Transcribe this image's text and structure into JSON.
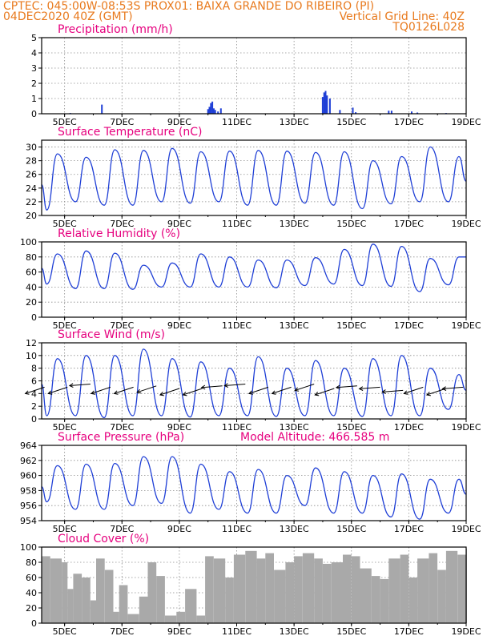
{
  "header": {
    "line1_left": "CPTEC:   045:00W-08:53S   PROX01: BAIXA GRANDE DO RIBEIRO (PI)",
    "line2_left": "04DEC2020 40Z (GMT)",
    "line2_right": "Vertical Grid Line: 40Z",
    "line3_right": "TQ0126L028"
  },
  "x_tick_labels": [
    "5DEC",
    "7DEC",
    "9DEC",
    "11DEC",
    "13DEC",
    "15DEC",
    "17DEC",
    "19DEC"
  ],
  "x_tick_days": [
    5,
    7,
    9,
    11,
    13,
    15,
    17,
    19
  ],
  "x_range_days": [
    4.2,
    19.0
  ],
  "colors": {
    "line": "#1f3fd6",
    "bar": "#1f3fd6",
    "cloud": "#a9a9a9",
    "title": "#e6007e",
    "header": "#e87a1e",
    "arrow": "#000000"
  },
  "chart_data": [
    {
      "id": "precip",
      "type": "bar",
      "title": "Precipitation (mm/h)",
      "ylim": [
        0,
        5
      ],
      "yticks": [
        0,
        1,
        2,
        3,
        4,
        5
      ],
      "x": [
        5.2,
        6.3,
        10.0,
        10.05,
        10.1,
        10.15,
        10.2,
        10.25,
        10.35,
        10.45,
        14.0,
        14.05,
        14.1,
        14.15,
        14.25,
        14.6,
        15.05,
        15.15,
        16.3,
        16.4,
        17.1,
        17.3,
        18.3
      ],
      "values": [
        0.05,
        0.6,
        0.3,
        0.45,
        0.7,
        0.8,
        0.35,
        0.25,
        0.15,
        0.35,
        1.1,
        1.4,
        1.5,
        1.2,
        1.0,
        0.25,
        0.4,
        0.1,
        0.2,
        0.2,
        0.15,
        0.08,
        0.05
      ],
      "grid": true
    },
    {
      "id": "temp",
      "type": "line",
      "title": "Surface Temperature (nC)",
      "ylim": [
        20,
        31
      ],
      "yticks": [
        20,
        22,
        24,
        26,
        28,
        30
      ],
      "daily_min": [
        20.8,
        22.0,
        21.5,
        21.5,
        22.0,
        21.8,
        22.0,
        21.5,
        21.5,
        21.8,
        21.5,
        21.0,
        21.7,
        22.0,
        22.0
      ],
      "daily_max": [
        29.0,
        28.5,
        29.6,
        29.5,
        29.8,
        29.3,
        29.4,
        29.5,
        29.4,
        29.2,
        29.3,
        28.0,
        28.6,
        30.0,
        28.6
      ],
      "series_start": [
        4.2,
        24.5
      ],
      "series_end": [
        19.0,
        25.0
      ],
      "grid": true
    },
    {
      "id": "rh",
      "type": "line",
      "title": "Relative Humidity (%)",
      "ylim": [
        0,
        100
      ],
      "yticks": [
        0,
        20,
        40,
        60,
        80,
        100
      ],
      "daily_min": [
        44,
        38,
        38,
        37,
        40,
        40,
        40,
        40,
        39,
        42,
        44,
        42,
        41,
        34,
        43
      ],
      "daily_max": [
        84,
        88,
        85,
        69,
        72,
        84,
        80,
        76,
        76,
        79,
        90,
        97,
        94,
        78,
        80
      ],
      "series_start": [
        4.2,
        65
      ],
      "series_end": [
        19.0,
        80
      ],
      "grid": true
    },
    {
      "id": "wind",
      "type": "line",
      "title": "Surface Wind (m/s)",
      "ylim": [
        0,
        12
      ],
      "yticks": [
        0,
        2,
        4,
        6,
        8,
        10,
        12
      ],
      "daily_min": [
        0.5,
        0.5,
        0.2,
        0.5,
        0.5,
        0.3,
        0.5,
        0.5,
        0.4,
        0.5,
        0.5,
        0.4,
        0.5,
        0.5,
        1.5
      ],
      "daily_max": [
        9.5,
        10.0,
        10.0,
        11.0,
        9.5,
        9.0,
        8.0,
        9.8,
        8.0,
        9.2,
        8.0,
        9.5,
        10.0,
        8.0,
        7.0
      ],
      "series_start": [
        4.2,
        5.5
      ],
      "series_end": [
        19.0,
        4.5
      ],
      "arrows": [
        {
          "x": 4.3,
          "y": 5.0,
          "dir": "sw"
        },
        {
          "x": 5.1,
          "y": 5.0,
          "dir": "sw"
        },
        {
          "x": 5.9,
          "y": 5.5,
          "dir": "w"
        },
        {
          "x": 6.6,
          "y": 5.0,
          "dir": "sw"
        },
        {
          "x": 7.4,
          "y": 5.0,
          "dir": "sw"
        },
        {
          "x": 8.2,
          "y": 5.2,
          "dir": "sw"
        },
        {
          "x": 9.0,
          "y": 4.8,
          "dir": "sw"
        },
        {
          "x": 9.8,
          "y": 4.8,
          "dir": "sw"
        },
        {
          "x": 10.5,
          "y": 5.2,
          "dir": "w"
        },
        {
          "x": 11.3,
          "y": 5.5,
          "dir": "w"
        },
        {
          "x": 12.1,
          "y": 5.0,
          "dir": "sw"
        },
        {
          "x": 12.9,
          "y": 5.0,
          "dir": "sw"
        },
        {
          "x": 13.7,
          "y": 5.5,
          "dir": "sw"
        },
        {
          "x": 14.4,
          "y": 4.8,
          "dir": "sw"
        },
        {
          "x": 15.2,
          "y": 5.2,
          "dir": "w"
        },
        {
          "x": 16.0,
          "y": 5.0,
          "dir": "w"
        },
        {
          "x": 16.8,
          "y": 4.5,
          "dir": "w"
        },
        {
          "x": 17.5,
          "y": 5.0,
          "dir": "sw"
        },
        {
          "x": 18.3,
          "y": 4.8,
          "dir": "sw"
        },
        {
          "x": 18.9,
          "y": 5.0,
          "dir": "w"
        }
      ],
      "grid": true
    },
    {
      "id": "press",
      "type": "line",
      "title": "Surface Pressure (hPa)",
      "annotation": "Model Altitude: 466.585 m",
      "ylim": [
        954,
        964
      ],
      "yticks": [
        954,
        956,
        958,
        960,
        962,
        964
      ],
      "daily_min": [
        956.5,
        955.5,
        955.5,
        956.0,
        956.3,
        955.0,
        955.5,
        955.0,
        955.0,
        956.0,
        955.0,
        955.0,
        954.5,
        954.2,
        955.0
      ],
      "daily_max": [
        961.3,
        961.5,
        961.6,
        962.5,
        962.5,
        961.5,
        960.5,
        960.8,
        960.0,
        961.0,
        960.5,
        960.0,
        960.2,
        959.5,
        959.5
      ],
      "series_start": [
        4.2,
        958.5
      ],
      "series_end": [
        19.0,
        957.5
      ],
      "grid": true
    },
    {
      "id": "cloud",
      "type": "area",
      "title": "Cloud Cover (%)",
      "ylim": [
        0,
        100
      ],
      "yticks": [
        0,
        20,
        40,
        60,
        80,
        100
      ],
      "x": [
        4.2,
        4.5,
        4.9,
        5.1,
        5.3,
        5.6,
        5.9,
        6.1,
        6.4,
        6.7,
        6.9,
        7.2,
        7.6,
        7.9,
        8.2,
        8.5,
        8.9,
        9.2,
        9.6,
        9.9,
        10.2,
        10.6,
        10.9,
        11.3,
        11.7,
        12.0,
        12.3,
        12.7,
        13.0,
        13.3,
        13.7,
        14.0,
        14.3,
        14.7,
        15.0,
        15.3,
        15.7,
        16.0,
        16.3,
        16.7,
        17.0,
        17.3,
        17.7,
        18.0,
        18.3,
        18.7,
        19.0
      ],
      "values": [
        88,
        85,
        80,
        45,
        65,
        60,
        30,
        85,
        70,
        15,
        50,
        12,
        35,
        80,
        62,
        10,
        15,
        45,
        10,
        88,
        85,
        60,
        90,
        95,
        85,
        92,
        70,
        80,
        88,
        92,
        85,
        78,
        80,
        90,
        88,
        72,
        62,
        58,
        85,
        90,
        60,
        85,
        92,
        70,
        95,
        90,
        98
      ],
      "grid": true
    }
  ]
}
